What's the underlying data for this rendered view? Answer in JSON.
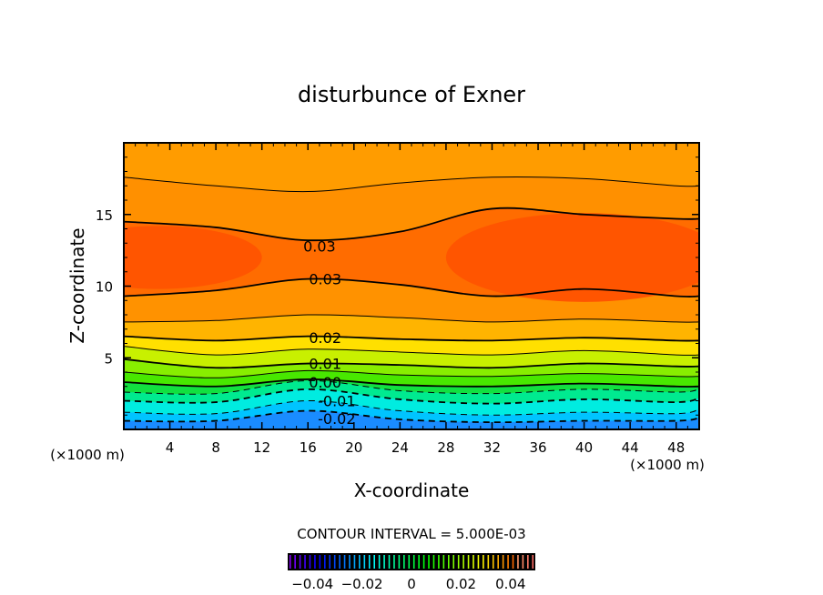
{
  "chart_data": {
    "type": "contour",
    "title": "disturbunce of Exner",
    "xlabel": "X-coordinate",
    "ylabel": "Z-coordinate",
    "x_unit_label": "(×1000 m)",
    "y_unit_label": "(×1000 m)",
    "xlim": [
      0,
      50
    ],
    "ylim": [
      0,
      20
    ],
    "x_ticks": [
      4,
      8,
      12,
      16,
      20,
      24,
      28,
      32,
      36,
      40,
      44,
      48
    ],
    "x_tick_labels": [
      "4",
      "8",
      "12",
      "16",
      "20",
      "24",
      "28",
      "32",
      "36",
      "40",
      "44",
      "48"
    ],
    "y_ticks": [
      5,
      10,
      15
    ],
    "y_tick_labels": [
      "5",
      "10",
      "15"
    ],
    "contour_interval_text": "CONTOUR INTERVAL = 5.000E-03",
    "sample_x": [
      0,
      8,
      16,
      24,
      32,
      40,
      48,
      50
    ],
    "contours": [
      {
        "level": -0.02,
        "z": [
          0.6,
          0.6,
          1.3,
          0.7,
          0.5,
          0.6,
          0.6,
          0.8
        ],
        "label": "-0.02",
        "label_at": [
          18.5,
          0.75
        ]
      },
      {
        "level": -0.015,
        "z": [
          1.2,
          1.1,
          2.0,
          1.3,
          1.0,
          1.2,
          1.1,
          1.4
        ],
        "label": ""
      },
      {
        "level": -0.01,
        "z": [
          2.0,
          1.9,
          2.8,
          2.1,
          1.8,
          2.1,
          1.9,
          2.2
        ],
        "label": "-0.01",
        "label_at": [
          18.5,
          2.0
        ]
      },
      {
        "level": -0.005,
        "z": [
          2.6,
          2.5,
          3.4,
          2.7,
          2.5,
          2.8,
          2.6,
          2.8
        ],
        "label": ""
      },
      {
        "level": 0.0,
        "z": [
          3.3,
          3.0,
          3.5,
          3.1,
          3.0,
          3.2,
          3.0,
          3.0
        ],
        "label": "0.00",
        "label_at": [
          17.5,
          3.3
        ]
      },
      {
        "level": 0.005,
        "z": [
          4.0,
          3.6,
          4.1,
          3.8,
          3.7,
          3.9,
          3.7,
          3.7
        ],
        "label": ""
      },
      {
        "level": 0.01,
        "z": [
          4.9,
          4.3,
          4.6,
          4.5,
          4.3,
          4.6,
          4.4,
          4.4
        ],
        "label": "0.01",
        "label_at": [
          17.5,
          4.6
        ]
      },
      {
        "level": 0.015,
        "z": [
          5.8,
          5.2,
          5.6,
          5.4,
          5.2,
          5.5,
          5.2,
          5.2
        ],
        "label": ""
      },
      {
        "level": 0.02,
        "z": [
          6.5,
          6.2,
          6.5,
          6.3,
          6.2,
          6.4,
          6.2,
          6.2
        ],
        "label": "0.02",
        "label_at": [
          17.5,
          6.4
        ]
      },
      {
        "level": 0.025,
        "z": [
          7.5,
          7.6,
          8.0,
          7.8,
          7.5,
          7.7,
          7.5,
          7.5
        ],
        "label": ""
      },
      {
        "level": 0.03,
        "z": [
          9.3,
          9.7,
          10.5,
          10.1,
          9.3,
          9.8,
          9.3,
          9.3
        ],
        "label": "0.03",
        "label_at": [
          17.5,
          10.5
        ]
      },
      {
        "level": 0.03,
        "z": [
          14.5,
          14.1,
          13.2,
          13.8,
          15.4,
          15.0,
          14.7,
          14.7
        ],
        "label": "0.03",
        "label_at": [
          17.0,
          12.8
        ]
      },
      {
        "level": 0.025,
        "z": [
          17.6,
          17.0,
          16.6,
          17.2,
          17.6,
          17.5,
          17.0,
          17.0
        ],
        "label": ""
      }
    ],
    "colorbar": {
      "min": -0.05,
      "max": 0.05,
      "ticks": [
        -0.04,
        -0.02,
        0,
        0.02,
        0.04
      ],
      "tick_labels": [
        "-0.04",
        "-0.02",
        "0",
        "0.02",
        "0.04"
      ]
    },
    "band_colors": [
      "#1a8cff",
      "#00c4ff",
      "#00ece0",
      "#00ea90",
      "#12e040",
      "#48e800",
      "#88ee00",
      "#c8f000",
      "#ffe000",
      "#ffb400",
      "#ff9200",
      "#ff6c00",
      "#ff9000",
      "#ff9c00"
    ],
    "core_color": "#ff5500"
  }
}
